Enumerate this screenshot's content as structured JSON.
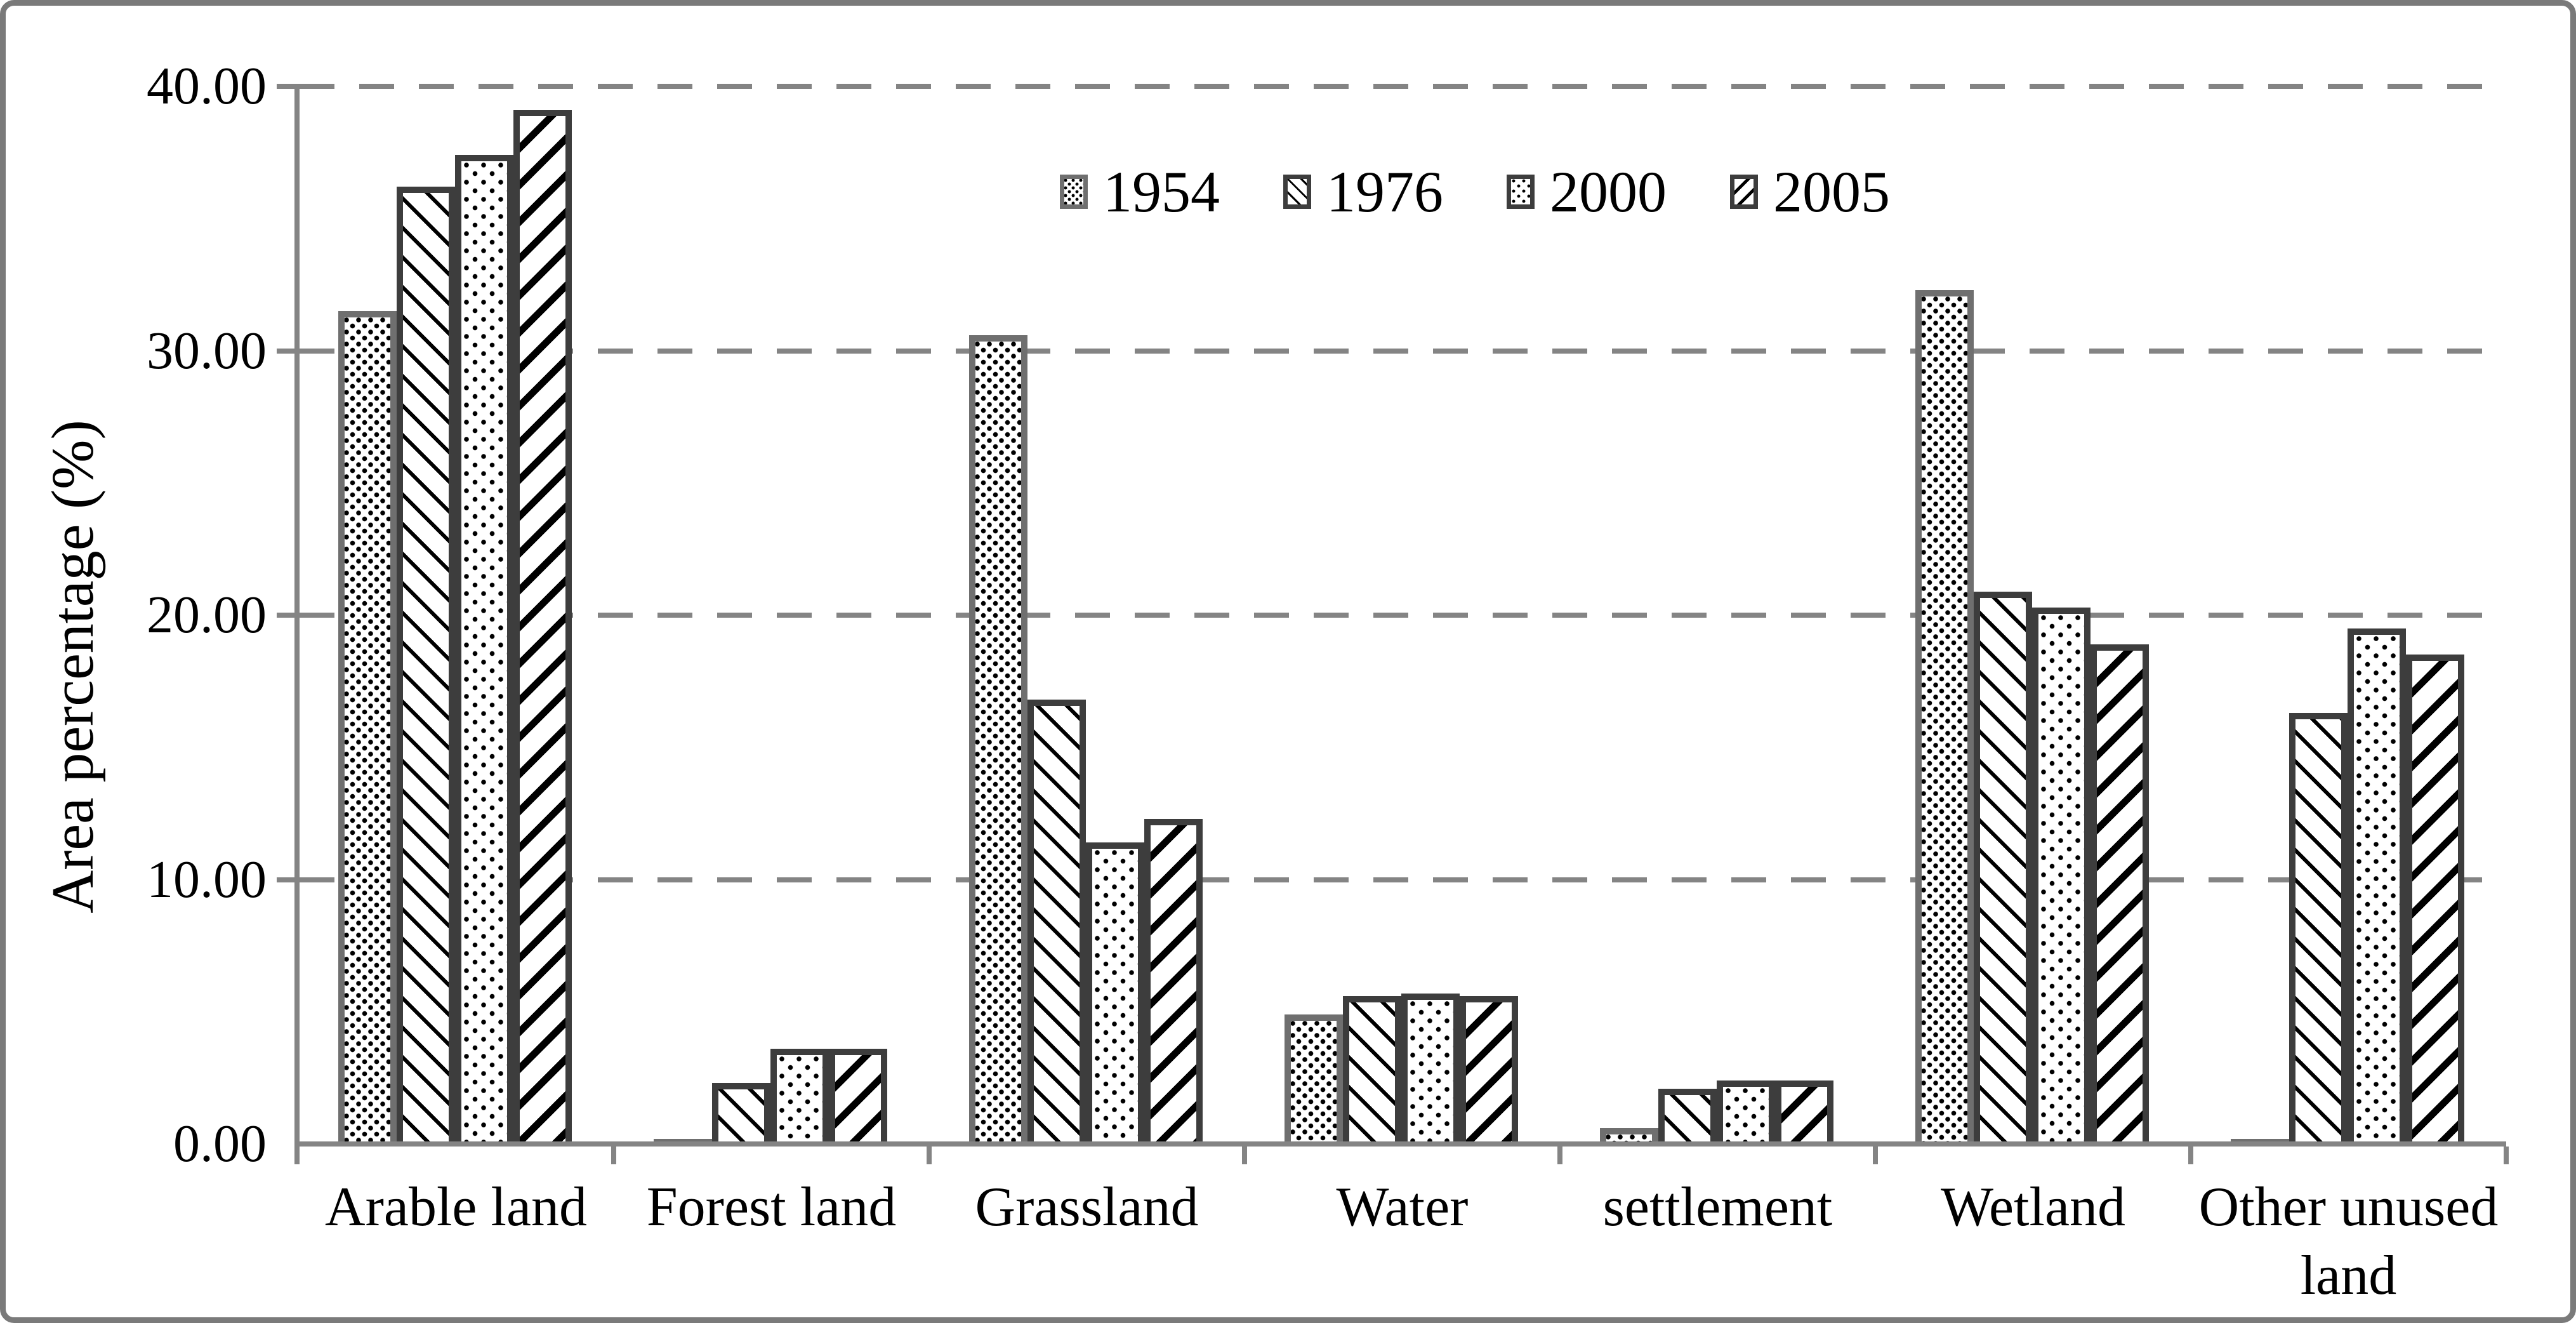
{
  "chart_data": {
    "type": "bar",
    "title": "",
    "xlabel": "",
    "ylabel": "Area percentage (%)",
    "categories": [
      "Arable land",
      "Forest land",
      "Grassland",
      "Water",
      "settlement",
      "Wetland",
      "Other unused land"
    ],
    "series": [
      {
        "name": "1954",
        "pattern": "dense-dots",
        "values": [
          31.5,
          0.2,
          30.6,
          4.9,
          0.6,
          32.3,
          0.2
        ]
      },
      {
        "name": "1976",
        "pattern": "diag-down",
        "values": [
          36.2,
          2.3,
          16.8,
          5.6,
          2.1,
          20.9,
          16.3
        ]
      },
      {
        "name": "2000",
        "pattern": "sparse-dots",
        "values": [
          37.4,
          3.6,
          11.4,
          5.7,
          2.4,
          20.3,
          19.5
        ]
      },
      {
        "name": "2005",
        "pattern": "diag-up",
        "values": [
          39.1,
          3.6,
          12.3,
          5.6,
          2.4,
          18.9,
          18.5
        ]
      }
    ],
    "ylim": [
      0,
      40
    ],
    "ytick_values": [
      0,
      10,
      20,
      30,
      40
    ],
    "ytick_labels": [
      "0.00",
      "10.00",
      "20.00",
      "30.00",
      "40.00"
    ],
    "grid": "horizontal-dashed",
    "legend_position": "top-center",
    "legend_entries": [
      "1954",
      "1976",
      "2000",
      "2005"
    ],
    "colors": {
      "axis": "#848484",
      "gridline": "#848484",
      "frame": "#7a7a7a",
      "bar_fill": "#ffffff",
      "bar_border": "#3d3d3d",
      "bar_border_1954": "#6f6f6f",
      "text": "#000000"
    }
  }
}
